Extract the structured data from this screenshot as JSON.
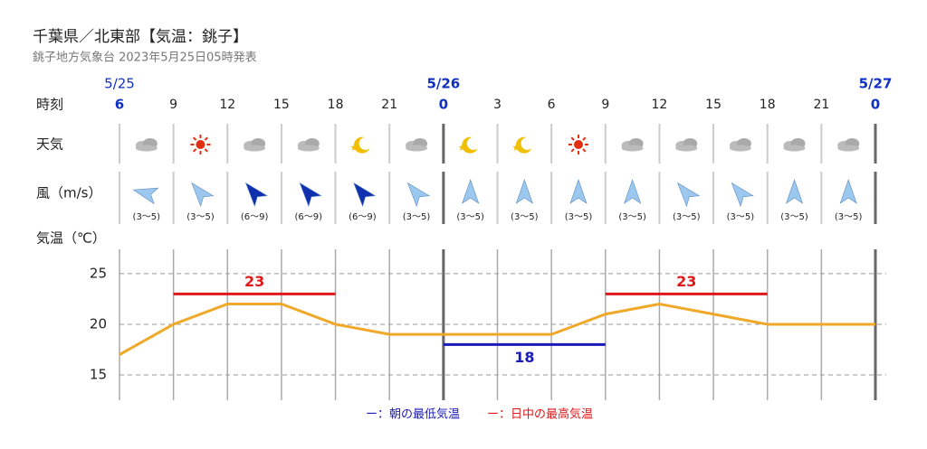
{
  "chart_data": {
    "type": "line",
    "title": "千葉県／北東部【気温：銚子】",
    "subtitle": "銚子地方気象台 2023年5月25日05時発表",
    "row_labels": {
      "time": "時刻",
      "weather": "天気",
      "wind": "風（m/s）",
      "temp": "気温（℃）"
    },
    "categories": [
      6,
      9,
      12,
      15,
      18,
      21,
      0,
      3,
      6,
      9,
      12,
      15,
      18,
      21,
      0
    ],
    "dates": [
      "5/25",
      null,
      null,
      null,
      null,
      null,
      "5/26",
      null,
      null,
      null,
      null,
      null,
      null,
      null,
      "5/27"
    ],
    "weather_icons": [
      "cloud",
      "sun",
      "cloud",
      "cloud",
      "moon",
      "cloud",
      "moon",
      "moon",
      "sun",
      "cloud",
      "cloud",
      "cloud",
      "cloud",
      "cloud"
    ],
    "wind": {
      "directions": [
        285,
        320,
        320,
        320,
        320,
        320,
        0,
        0,
        0,
        0,
        320,
        320,
        0,
        0
      ],
      "speeds": [
        "(3～5)",
        "(3～5)",
        "(6～9)",
        "(6～9)",
        "(6～9)",
        "(3～5)",
        "(3～5)",
        "(3～5)",
        "(3～5)",
        "(3～5)",
        "(3～5)",
        "(3～5)",
        "(3～5)",
        "(3～5)"
      ],
      "colors": [
        "#9cc8f0",
        "#9cc8f0",
        "#1030b0",
        "#1030b0",
        "#1030b0",
        "#9cc8f0",
        "#9cc8f0",
        "#9cc8f0",
        "#9cc8f0",
        "#9cc8f0",
        "#9cc8f0",
        "#9cc8f0",
        "#9cc8f0",
        "#9cc8f0"
      ]
    },
    "values": [
      17,
      20,
      22,
      22,
      20,
      19,
      19,
      19,
      19,
      21,
      22,
      21,
      20,
      20,
      20
    ],
    "color": "#f0a828",
    "ylim": [
      12.5,
      27.4
    ],
    "yticks": [
      15,
      20,
      25
    ],
    "grid": true,
    "bands": [
      {
        "name": "ー：朝の最低気温",
        "color": "#1a1ab8",
        "segments": [
          {
            "from": 6,
            "to": 9,
            "value": 18
          }
        ]
      },
      {
        "name": "ー：日中の最高気温",
        "color": "#e01818",
        "segments": [
          {
            "from": 1,
            "to": 4,
            "value": 23
          },
          {
            "from": 9,
            "to": 12,
            "value": 23
          }
        ]
      }
    ]
  }
}
